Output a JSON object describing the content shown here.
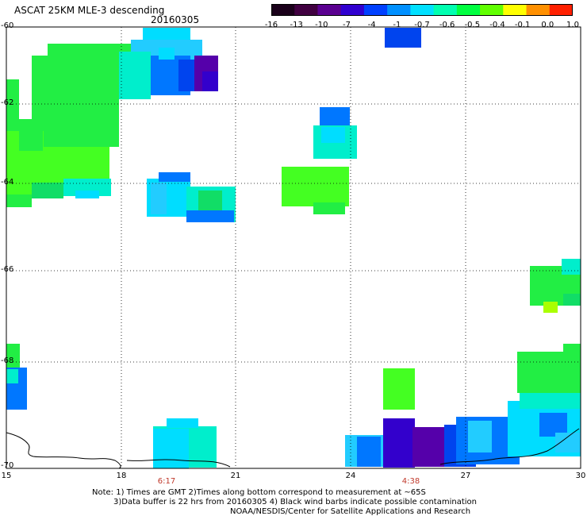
{
  "header": {
    "title": "ASCAT 25KM MLE-3 descending",
    "date": "20160305"
  },
  "colorbar": {
    "labels": [
      "-16",
      "-13",
      "-10",
      "-7",
      "-4",
      "-1",
      "-0.7",
      "-0.6",
      "-0.5",
      "-0.4",
      "-0.1",
      "0.0",
      "1.0"
    ],
    "colors": [
      "#1a001a",
      "#400040",
      "#5a0090",
      "#3000d0",
      "#0040ff",
      "#0090ff",
      "#00e0ff",
      "#00ffb0",
      "#00ff40",
      "#60ff00",
      "#ffff00",
      "#ff9000",
      "#ff2000"
    ]
  },
  "axes": {
    "lat_labels": [
      "-60",
      "-62",
      "-64",
      "-66",
      "-68",
      "-70"
    ],
    "lon_labels": [
      "15",
      "18",
      "21",
      "24",
      "27",
      "30"
    ],
    "time_labels": [
      "6:17",
      "4:38"
    ]
  },
  "notes": {
    "line1": "Note: 1) Times are GMT 2)Times along bottom correspond to measurement at ~65S",
    "line2": "3)Data buffer is 22 hrs from 20160305 4) Black wind barbs indicate possible contamination",
    "line3": "NOAA/NESDIS/Center for Satellite Applications and Research"
  }
}
